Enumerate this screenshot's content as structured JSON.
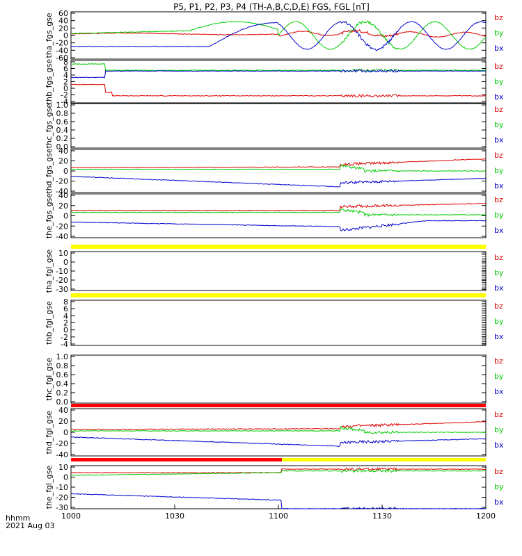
{
  "title": "P5, P1, P2, P3, P4 (TH-A,B,C,D,E) FGS, FGL [nT]",
  "time_label": "hhmm",
  "date_label": "2021 Aug 03",
  "colors": {
    "bx": "#0000cc",
    "by": "#00cc00",
    "bz": "#dd0000",
    "yellow": "#ffff00",
    "red": "#ff0000"
  },
  "chart_data": {
    "type": "line",
    "xlim": [
      0,
      120
    ],
    "x_ticks": [
      0,
      30,
      60,
      90,
      120
    ],
    "x_tick_labels": [
      "1000",
      "1030",
      "1100",
      "1130",
      "1200"
    ],
    "series_names": [
      "bz",
      "by",
      "bx"
    ],
    "panels": [
      {
        "ylabel": "tha_fgs_gse",
        "ylim": [
          -60,
          60
        ],
        "ytick_labels": [
          "60",
          "40",
          "20",
          "0",
          "-20",
          "-40",
          "-60"
        ],
        "kind": "tha",
        "has_data": true,
        "dense_ticks": false
      },
      {
        "ylabel": "thb_fgs_gse",
        "ylim": [
          -4,
          8
        ],
        "ytick_labels": [
          "8",
          "6",
          "4",
          "2",
          "0",
          "-2",
          "-4"
        ],
        "kind": "thb",
        "has_data": true,
        "dense_ticks": false
      },
      {
        "ylabel": "thc_fgs_gse",
        "ylim": [
          0,
          1
        ],
        "ytick_labels": [
          "1.0",
          "0.8",
          "0.6",
          "0.4",
          "0.2",
          "0.0"
        ],
        "kind": "empty",
        "has_data": false,
        "dense_ticks": false
      },
      {
        "ylabel": "thd_fgs_gse",
        "ylim": [
          -40,
          40
        ],
        "ytick_labels": [
          "40",
          "20",
          "0",
          "-20",
          "-40"
        ],
        "kind": "thd",
        "has_data": true,
        "dense_ticks": false
      },
      {
        "ylabel": "the_fgs_gse",
        "ylim": [
          -50,
          40
        ],
        "ytick_labels": [
          "40",
          "20",
          "0",
          "-20",
          "-40"
        ],
        "kind": "the",
        "has_data": true,
        "dense_ticks": false
      },
      {
        "ylabel": "tha_fgl_gse",
        "ylim": [
          -35,
          13
        ],
        "ytick_labels": [
          "10",
          "0",
          "-10",
          "-20",
          "-30"
        ],
        "kind": "empty",
        "has_data": false,
        "dense_ticks": true,
        "bar_above": "yellow"
      },
      {
        "ylabel": "thb_fgl_gse",
        "ylim": [
          -5.5,
          8.5
        ],
        "ytick_labels": [
          "8",
          "6",
          "4",
          "2",
          "0",
          "-2",
          "-4"
        ],
        "kind": "empty",
        "has_data": false,
        "dense_ticks": true,
        "bar_above": "yellow"
      },
      {
        "ylabel": "thc_fgl_gse",
        "ylim": [
          -0.1,
          1.1
        ],
        "ytick_labels": [
          "1.0",
          "0.8",
          "0.6",
          "0.4",
          "0.2",
          "0.0"
        ],
        "kind": "empty",
        "has_data": false,
        "dense_ticks": false,
        "bar_below": "red"
      },
      {
        "ylabel": "thd_fgl_gse",
        "ylim": [
          -50,
          50
        ],
        "ytick_labels": [
          "40",
          "20",
          "0",
          "-20",
          "-40"
        ],
        "kind": "thd",
        "has_data": true,
        "dense_ticks": false
      },
      {
        "ylabel": "the_fgl_gse",
        "ylim": [
          -35,
          14
        ],
        "ytick_labels": [
          "10",
          "0",
          "-10",
          "-20",
          "-30"
        ],
        "kind": "the_fgl",
        "has_data": true,
        "dense_ticks": false,
        "bar_above": "split",
        "split_at": 61
      }
    ]
  }
}
